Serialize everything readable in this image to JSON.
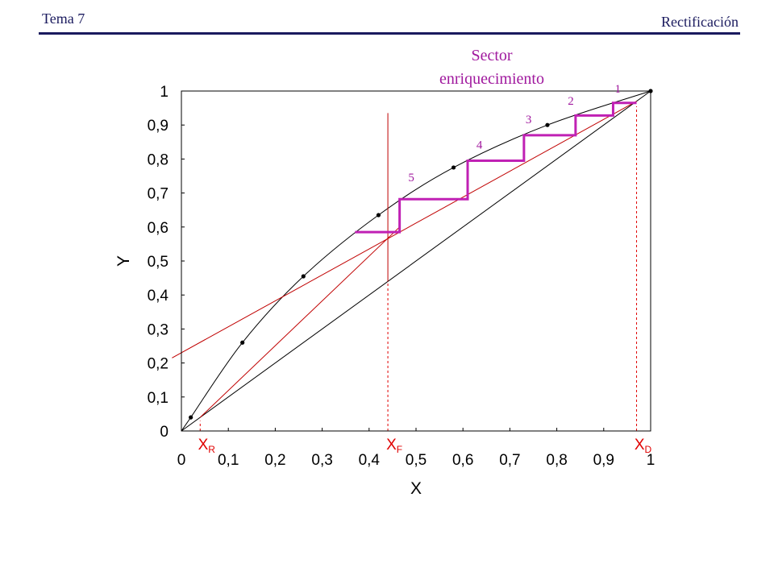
{
  "header": {
    "left": "Tema 7",
    "right": "Rectificación"
  },
  "colors": {
    "header": "#1a1a5e",
    "equilibrium": "#000000",
    "operating_line": "#c00000",
    "stages": "#c021b4",
    "markers": "#e00000",
    "annotation": "#a0199e"
  },
  "chart_data": {
    "type": "line",
    "xlabel": "X",
    "ylabel": "Y",
    "xlim": [
      0,
      1
    ],
    "ylim": [
      0,
      1
    ],
    "xticks": [
      "0",
      "0,1",
      "0,2",
      "0,3",
      "0,4",
      "0,5",
      "0,6",
      "0,7",
      "0,8",
      "0,9",
      "1"
    ],
    "yticks": [
      "0",
      "0,1",
      "0,2",
      "0,3",
      "0,4",
      "0,5",
      "0,6",
      "0,7",
      "0,8",
      "0,9",
      "1"
    ],
    "grid": false,
    "equilibrium_points": [
      {
        "x": 0,
        "y": 0
      },
      {
        "x": 0.02,
        "y": 0.04
      },
      {
        "x": 0.13,
        "y": 0.26
      },
      {
        "x": 0.26,
        "y": 0.455
      },
      {
        "x": 0.42,
        "y": 0.635
      },
      {
        "x": 0.58,
        "y": 0.775
      },
      {
        "x": 0.78,
        "y": 0.9
      },
      {
        "x": 1,
        "y": 1
      }
    ],
    "diagonal": [
      [
        0,
        0
      ],
      [
        1,
        1
      ]
    ],
    "enriching_line": [
      [
        -0.02,
        0.215
      ],
      [
        0.97,
        0.97
      ]
    ],
    "stripping_line": [
      [
        0.04,
        0.04
      ],
      [
        0.465,
        0.6
      ]
    ],
    "feed_line": [
      [
        0.44,
        0.44
      ],
      [
        0.44,
        0.935
      ]
    ],
    "markers": [
      {
        "label": "X",
        "sub": "R",
        "x": 0.04
      },
      {
        "label": "X",
        "sub": "F",
        "x": 0.44
      },
      {
        "label": "X",
        "sub": "D",
        "x": 0.97
      }
    ],
    "stage_path": [
      [
        0.97,
        0.965
      ],
      [
        0.92,
        0.965
      ],
      [
        0.92,
        0.928
      ],
      [
        0.84,
        0.928
      ],
      [
        0.84,
        0.87
      ],
      [
        0.73,
        0.87
      ],
      [
        0.73,
        0.795
      ],
      [
        0.61,
        0.795
      ],
      [
        0.61,
        0.682
      ],
      [
        0.465,
        0.682
      ],
      [
        0.465,
        0.585
      ],
      [
        0.37,
        0.585
      ]
    ],
    "stage_labels": [
      {
        "text": "1",
        "x": 0.93,
        "y": 0.995
      },
      {
        "text": "2",
        "x": 0.83,
        "y": 0.96
      },
      {
        "text": "3",
        "x": 0.74,
        "y": 0.905
      },
      {
        "text": "4",
        "x": 0.635,
        "y": 0.83
      },
      {
        "text": "5",
        "x": 0.49,
        "y": 0.735
      }
    ],
    "annotation": [
      "Sector",
      "enriquecimiento"
    ]
  }
}
